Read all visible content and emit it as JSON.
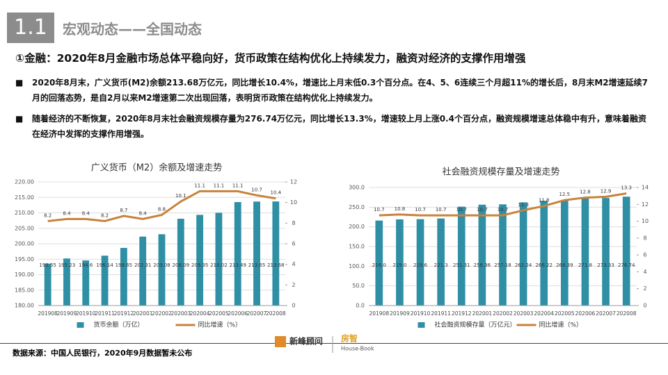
{
  "header": {
    "number": "1.1",
    "title": "宏观动态——全国动态"
  },
  "subtitle": "①金融：2020年8月金融市场总体平稳向好，货币政策在结构优化上持续发力，融资对经济的支撑作用增强",
  "bullets": [
    "2020年8月末，广义货币(M2)余额213.68万亿元，同比增长10.4%，增速比上月末低0.3个百分点。在4、5、6连续三个月超11%的增长后，8月末M2增速延续7月的回落态势，是自2月以来M2增速第二次出现回落，表明货币政策在结构优化上持续发力。",
    "随着经济的不断恢复，2020年8月末社会融资规模存量为276.74万亿元，同比增长13.3%，增速较上月上涨0.4个百分点，融资规模增速总体稳中有升，意味着融资在经济中发挥的支撑作用增强。"
  ],
  "footer": "数据来源：中国人民银行，2020年9月数据暂未公布",
  "logos": [
    "新峰顾问",
    "房智",
    "House-Book"
  ],
  "chart_data": [
    {
      "type": "bar-line",
      "title": "广义货币（M2）余额及增速走势",
      "categories": [
        "201908",
        "201909",
        "201910",
        "201911",
        "201912",
        "202001",
        "202002",
        "202003",
        "202004",
        "202005",
        "202006",
        "202007",
        "202008"
      ],
      "series": [
        {
          "name": "货币余额（万亿）",
          "color": "#2f8fa5",
          "values": [
            193.55,
            195.23,
            194.6,
            196.14,
            198.65,
            202.31,
            203.08,
            208.09,
            209.35,
            210.02,
            213.49,
            213.65,
            213.68
          ]
        },
        {
          "name": "同比增速（%）",
          "color": "#c8823a",
          "axis": "y2",
          "values": [
            8.2,
            8.4,
            8.4,
            8.2,
            8.7,
            8.4,
            8.8,
            10.1,
            11.1,
            11.1,
            11.1,
            10.7,
            10.4
          ]
        }
      ],
      "ylim": [
        180,
        220
      ],
      "yticks": [
        {
          "value": 180,
          "label": "180.00"
        },
        {
          "value": 185,
          "label": "185.00"
        },
        {
          "value": 190,
          "label": "190.00"
        },
        {
          "value": 195,
          "label": "195.00"
        },
        {
          "value": 200,
          "label": "200.00"
        },
        {
          "value": 205,
          "label": "205.00"
        },
        {
          "value": 210,
          "label": "210.00"
        },
        {
          "value": 215,
          "label": "215.00"
        },
        {
          "value": 220,
          "label": "220.00"
        }
      ],
      "y2lim": [
        0,
        12
      ],
      "y2ticks": [
        0,
        2,
        4,
        6,
        8,
        10,
        12
      ]
    },
    {
      "type": "bar-line",
      "title": "社会融资规模存量及增速走势",
      "categories": [
        "201908",
        "201909",
        "201910",
        "201911",
        "201912",
        "202001",
        "202002",
        "202003",
        "202004",
        "202005",
        "202006",
        "202007",
        "202008"
      ],
      "series": [
        {
          "name": "社会融资规模存量（万亿元）",
          "color": "#2f8fa5",
          "values": [
            216.0,
            219.0,
            219.6,
            221.3,
            251.31,
            256.36,
            257.18,
            262.24,
            266.22,
            268.39,
            271.8,
            273.33,
            276.74
          ],
          "value_labels": [
            "216.0",
            "219.0",
            "219.6",
            "221.3",
            "251.31",
            "256.36",
            "257.18",
            "262.24",
            "266.22",
            "268.39",
            "271.8",
            "273.33",
            "276.74"
          ]
        },
        {
          "name": "同比增速（%）",
          "color": "#c8823a",
          "axis": "y2",
          "values": [
            10.7,
            10.8,
            10.7,
            10.7,
            10.7,
            10.7,
            10.7,
            11.3,
            11.8,
            12.5,
            12.8,
            12.9,
            13.3
          ]
        }
      ],
      "ylim": [
        0,
        300
      ],
      "yticks": [
        {
          "value": 0,
          "label": "0.0"
        },
        {
          "value": 50,
          "label": "50.0"
        },
        {
          "value": 100,
          "label": "100.0"
        },
        {
          "value": 150,
          "label": "150.0"
        },
        {
          "value": 200,
          "label": "200.0"
        },
        {
          "value": 250,
          "label": "250.0"
        },
        {
          "value": 300,
          "label": "300.0"
        }
      ],
      "y2lim": [
        0,
        14
      ],
      "y2ticks": [
        0,
        2,
        4,
        6,
        8,
        10,
        12,
        14
      ]
    }
  ]
}
